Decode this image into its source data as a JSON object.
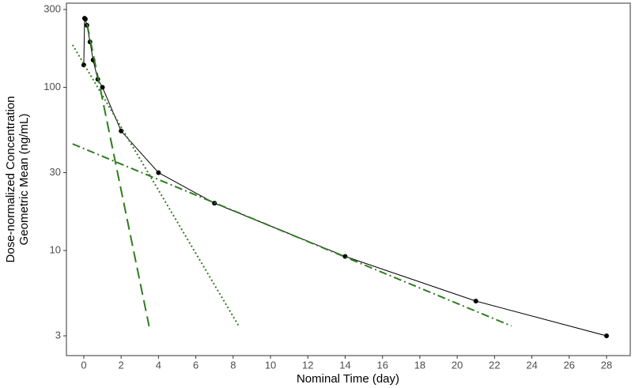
{
  "chart_data": {
    "type": "line",
    "xlabel": "Nominal Time (day)",
    "ylabel": [
      "Dose-normalized Concentration",
      "Geometric Mean (ng/mL)"
    ],
    "xlim": [
      -0.93,
      29.27
    ],
    "ylim": [
      2.27,
      328
    ],
    "ylog": true,
    "xticks": [
      0,
      2,
      4,
      6,
      8,
      10,
      12,
      14,
      16,
      18,
      20,
      22,
      24,
      26,
      28
    ],
    "yticks": [
      3,
      10,
      30,
      100,
      300
    ],
    "grid": false,
    "series": [
      {
        "color": "#000000",
        "dash": "solid",
        "markers": true,
        "x": [
          0,
          0.042,
          0.083,
          0.167,
          0.333,
          0.5,
          0.75,
          1,
          2,
          4,
          7,
          14,
          21,
          28
        ],
        "values": [
          137,
          265,
          262,
          240,
          190,
          147,
          112,
          100,
          54,
          30,
          19.5,
          9.2,
          4.9,
          3
        ]
      },
      {
        "color": "#2e7d1e",
        "dash": "dashed",
        "markers": false,
        "x": [
          0.17,
          3.5
        ],
        "values": [
          245,
          3.43
        ]
      },
      {
        "color": "#2e7d1e",
        "dash": "dotted",
        "markers": false,
        "x": [
          -0.6,
          8.3
        ],
        "values": [
          182,
          3.45
        ]
      },
      {
        "color": "#2e7d1e",
        "dash": "dashdot",
        "markers": false,
        "x": [
          -0.6,
          22.9
        ],
        "values": [
          45,
          3.45
        ]
      }
    ]
  }
}
